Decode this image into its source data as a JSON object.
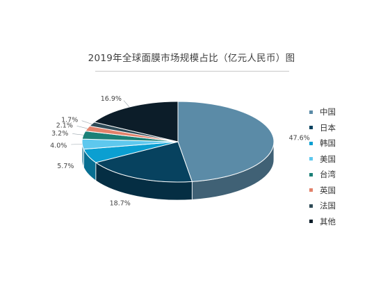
{
  "chart_data": {
    "type": "pie",
    "title": "2019年全球面膜市场规模占比（亿元人民币）图",
    "categories": [
      "中国",
      "日本",
      "韩国",
      "美国",
      "台湾",
      "英国",
      "法国",
      "其他"
    ],
    "values": [
      47.6,
      18.7,
      5.7,
      4.0,
      3.2,
      2.1,
      1.7,
      16.9
    ],
    "data_labels": [
      "47.6%",
      "18.7%",
      "5.7%",
      "4.0%",
      "3.2%",
      "2.1%",
      "1.7%",
      "16.9%"
    ],
    "colors": [
      "#5b8ba7",
      "#07425f",
      "#0b9fd1",
      "#5ec8ee",
      "#1b8077",
      "#e2826b",
      "#2f4b57",
      "#0c1d29"
    ],
    "legend_position": "right",
    "style": "3d"
  }
}
